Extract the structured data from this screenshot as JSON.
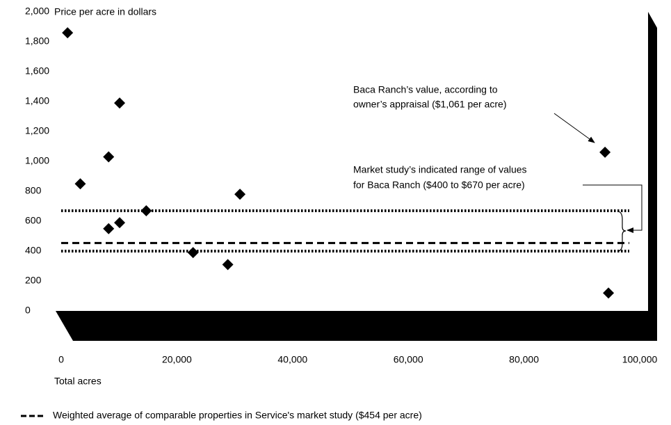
{
  "chart_data": {
    "type": "scatter",
    "y_axis_label": "Price per acre in dollars",
    "x_axis_label": "Total acres",
    "x": [
      1100,
      3300,
      8200,
      8200,
      10100,
      10100,
      14700,
      22800,
      28800,
      30900,
      94000,
      94600
    ],
    "values": [
      1860,
      850,
      1030,
      550,
      1390,
      590,
      670,
      390,
      310,
      780,
      1061,
      120
    ],
    "color": "#000000",
    "xlim": [
      0,
      100000
    ],
    "ylim": [
      0,
      2000
    ],
    "xticks": [
      0,
      {
        "value": 20000,
        "label": "20,000"
      },
      {
        "value": 40000,
        "label": "40,000"
      },
      {
        "value": 60000,
        "label": "60,000"
      },
      {
        "value": 80000,
        "label": "80,000"
      },
      {
        "value": 100000,
        "label": "100,000"
      }
    ],
    "yticks": [
      0,
      200,
      400,
      600,
      800,
      {
        "value": 1000,
        "label": "1,000"
      },
      {
        "value": 1200,
        "label": "1,200"
      },
      {
        "value": 1400,
        "label": "1,400"
      },
      {
        "value": 1600,
        "label": "1,600"
      },
      {
        "value": 1800,
        "label": "1,800"
      },
      {
        "value": 2000,
        "label": "2,000"
      }
    ],
    "reference_lines": [
      {
        "value": 670,
        "style": "dotted"
      },
      {
        "value": 454,
        "style": "dashed"
      },
      {
        "value": 400,
        "style": "dotted"
      }
    ],
    "annotations": [
      {
        "lines": [
          "Baca Ranch’s value, according to",
          "owner’s appraisal ($1,061 per acre)"
        ]
      },
      {
        "lines": [
          "Market study’s indicated range of values",
          "for Baca Ranch ($400 to $670 per acre)"
        ]
      }
    ],
    "legend": {
      "label": "Weighted average of comparable properties in Service's market study ($454 per acre)"
    }
  }
}
